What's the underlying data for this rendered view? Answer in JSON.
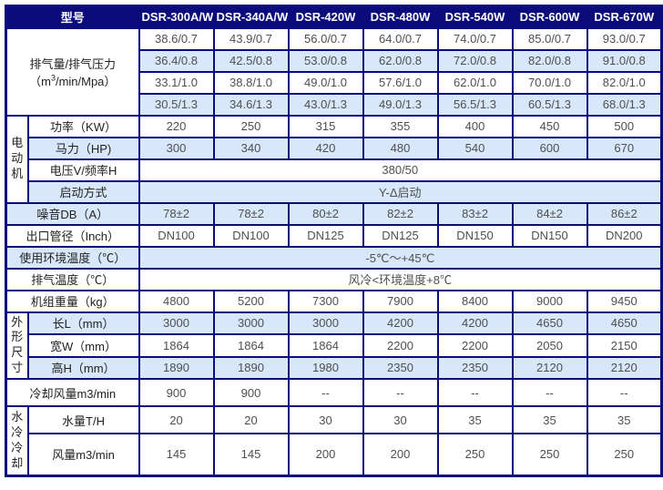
{
  "colors": {
    "navy": "#0b0b7b",
    "lightblue": "#d8e7fa",
    "label-text": "#222222",
    "value-text": "#4f4f4f",
    "header-text": "#ffffff"
  },
  "table": {
    "header": {
      "model_label": "型号",
      "models": [
        "DSR-300A/W",
        "DSR-340A/W",
        "DSR-420W",
        "DSR-480W",
        "DSR-540W",
        "DSR-600W",
        "DSR-670W"
      ]
    },
    "rows": [
      {
        "id": "capacity-0-7",
        "label_lines": [
          [
            "排气量/排气压力"
          ],
          [
            "（m",
            {
              "sup": "3"
            },
            "/min/Mpa）"
          ]
        ],
        "label_colspan": 2,
        "label_rowspan": 4,
        "bg": "w",
        "values": [
          "38.6/0.7",
          "43.9/0.7",
          "56.0/0.7",
          "64.0/0.7",
          "74.0/0.7",
          "85.0/0.7",
          "93.0/0.7"
        ]
      },
      {
        "id": "capacity-0-8",
        "bg": "b",
        "values": [
          "36.4/0.8",
          "42.5/0.8",
          "53.0/0.8",
          "62.0/0.8",
          "72.0/0.8",
          "82.0/0.8",
          "91.0/0.8"
        ]
      },
      {
        "id": "capacity-1-0",
        "bg": "w",
        "values": [
          "33.1/1.0",
          "38.8/1.0",
          "49.0/1.0",
          "57.6/1.0",
          "62.0/1.0",
          "70.0/1.0",
          "82.0/1.0"
        ]
      },
      {
        "id": "capacity-1-3",
        "bg": "b",
        "values": [
          "30.5/1.3",
          "34.6/1.3",
          "43.0/1.3",
          "49.0/1.3",
          "56.5/1.3",
          "60.5/1.3",
          "68.0/1.3"
        ]
      },
      {
        "id": "power",
        "group": {
          "text": "电动机",
          "rowspan": 4
        },
        "label": "功率（KW）",
        "bg": "w",
        "values": [
          "220",
          "250",
          "315",
          "355",
          "400",
          "450",
          "500"
        ]
      },
      {
        "id": "horsepower",
        "label": "马力（HP)",
        "bg": "b",
        "values": [
          "300",
          "340",
          "420",
          "480",
          "540",
          "600",
          "670"
        ]
      },
      {
        "id": "voltage-frequency",
        "label": "电压V/频率H",
        "bg": "w",
        "span_value": "380/50"
      },
      {
        "id": "start-mode",
        "label": "启动方式",
        "bg": "b",
        "span_value": "Y-Δ启动"
      },
      {
        "id": "noise",
        "label": "噪音DB（A）",
        "label_colspan": 2,
        "bg": "b",
        "values": [
          "78±2",
          "78±2",
          "80±2",
          "82±2",
          "83±2",
          "84±2",
          "86±2"
        ]
      },
      {
        "id": "outlet-pipe",
        "label": "出口管径（Inch）",
        "label_colspan": 2,
        "bg": "w",
        "values": [
          "DN100",
          "DN100",
          "DN125",
          "DN125",
          "DN150",
          "DN150",
          "DN200"
        ]
      },
      {
        "id": "ambient-temp",
        "label": "使用环境温度（℃）",
        "label_colspan": 2,
        "bg": "b",
        "span_value": "-5℃～+45℃"
      },
      {
        "id": "exhaust-temp",
        "label": "排气温度（℃）",
        "label_colspan": 2,
        "bg": "w",
        "span_value": "风冷<环境温度+8℃"
      },
      {
        "id": "unit-weight",
        "label": "机组重量（kg）",
        "label_colspan": 2,
        "bg": "w",
        "values": [
          "4800",
          "5200",
          "7300",
          "7900",
          "8400",
          "9000",
          "9450"
        ]
      },
      {
        "id": "length",
        "group": {
          "text": "外形尺寸",
          "rowspan": 3
        },
        "label": "长L（mm）",
        "bg": "b",
        "values": [
          "3000",
          "3000",
          "3000",
          "4200",
          "4200",
          "4650",
          "4650"
        ]
      },
      {
        "id": "width",
        "label": "宽W（mm）",
        "bg": "w",
        "values": [
          "1864",
          "1864",
          "1864",
          "2200",
          "2200",
          "2050",
          "2150"
        ]
      },
      {
        "id": "height",
        "label": "高H（mm）",
        "bg": "b",
        "values": [
          "1890",
          "1890",
          "1980",
          "2350",
          "2350",
          "2120",
          "2120"
        ]
      },
      {
        "id": "cooling-airflow",
        "label": "冷却风量m3/min",
        "label_colspan": 2,
        "bg": "w",
        "semi": true,
        "values": [
          "900",
          "900",
          "--",
          "--",
          "--",
          "--",
          "--"
        ]
      },
      {
        "id": "water-volume",
        "group": {
          "text": "水冷冷却",
          "rowspan": 2
        },
        "label": "水量T/H",
        "bg": "w",
        "semi": true,
        "values": [
          "20",
          "20",
          "30",
          "30",
          "35",
          "35",
          "35"
        ]
      },
      {
        "id": "air-volume",
        "label": "风量m3/min",
        "bg": "w",
        "tall": true,
        "values": [
          "145",
          "145",
          "200",
          "200",
          "250",
          "250",
          "250"
        ]
      }
    ]
  }
}
